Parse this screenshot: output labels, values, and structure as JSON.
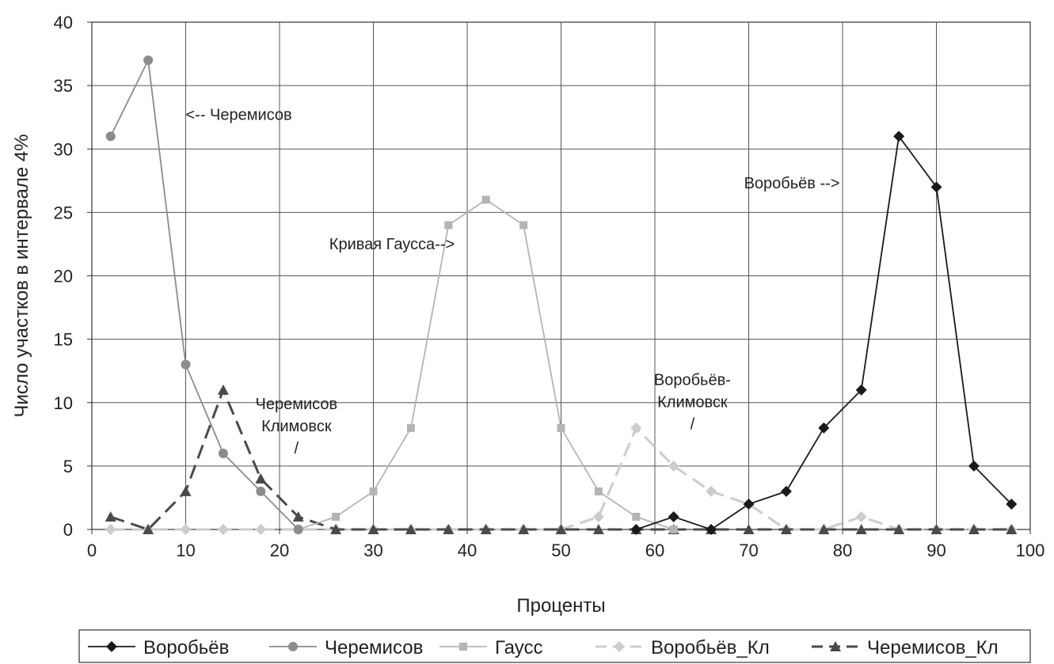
{
  "chart_data": {
    "type": "line",
    "title": "",
    "xlabel": "Проценты",
    "ylabel": "Число участков в интервале 4%",
    "xlim": [
      0,
      100
    ],
    "ylim": [
      0,
      40
    ],
    "xticks": [
      "0",
      "10",
      "20",
      "30",
      "40",
      "50",
      "60",
      "70",
      "80",
      "90",
      "100"
    ],
    "yticks": [
      "0",
      "5",
      "10",
      "15",
      "20",
      "25",
      "30",
      "35",
      "40"
    ],
    "grid": true,
    "legend_position": "bottom",
    "x": [
      2,
      6,
      10,
      14,
      18,
      22,
      26,
      30,
      34,
      38,
      42,
      46,
      50,
      54,
      58,
      62,
      66,
      70,
      74,
      78,
      82,
      86,
      90,
      94,
      98
    ],
    "series": [
      {
        "name": "Воробьёв",
        "color": "#1a1a1a",
        "marker": "diamond",
        "dash": "solid",
        "values": [
          null,
          null,
          null,
          null,
          null,
          null,
          null,
          null,
          null,
          null,
          null,
          null,
          null,
          null,
          0,
          1,
          0,
          2,
          3,
          8,
          11,
          31,
          27,
          5,
          2
        ]
      },
      {
        "name": "Черемисов",
        "color": "#8c8c8c",
        "marker": "circle",
        "dash": "solid",
        "values": [
          31,
          37,
          13,
          6,
          3,
          0,
          null,
          null,
          null,
          null,
          null,
          null,
          null,
          null,
          null,
          null,
          null,
          null,
          null,
          null,
          null,
          null,
          null,
          null,
          null
        ]
      },
      {
        "name": "Гаусс",
        "color": "#b4b4b4",
        "marker": "square",
        "dash": "solid",
        "values": [
          null,
          null,
          null,
          null,
          null,
          0,
          1,
          3,
          8,
          24,
          26,
          24,
          8,
          3,
          1,
          0,
          null,
          null,
          null,
          null,
          null,
          null,
          null,
          null,
          null
        ]
      },
      {
        "name": "Воробьёв_Кл",
        "color": "#cccccc",
        "marker": "diamond",
        "dash": "dashed",
        "values": [
          0,
          0,
          0,
          0,
          0,
          0,
          0,
          0,
          0,
          0,
          0,
          0,
          0,
          1,
          8,
          5,
          3,
          2,
          0,
          0,
          1,
          0,
          0,
          0,
          0
        ]
      },
      {
        "name": "Черемисов_Кл",
        "color": "#4a4a4a",
        "marker": "triangle",
        "dash": "dashed",
        "values": [
          1,
          0,
          3,
          11,
          4,
          1,
          0,
          0,
          0,
          0,
          0,
          0,
          0,
          0,
          0,
          0,
          0,
          0,
          0,
          0,
          0,
          0,
          0,
          0,
          0
        ]
      }
    ],
    "annotations": [
      {
        "id": "cheremisov",
        "lines": [
          "<-- Черемисов"
        ],
        "x": 10,
        "y": 32.3
      },
      {
        "id": "gauss",
        "lines": [
          "Кривая Гаусса-->"
        ],
        "x": 25.3,
        "y": 22.1
      },
      {
        "id": "vorobyov",
        "lines": [
          "Воробьёв -->"
        ],
        "x": 69.5,
        "y": 26.9
      },
      {
        "id": "cheremisov_kl",
        "lines": [
          "Черемисов",
          "Климовск",
          "/"
        ],
        "x": 21.8,
        "y": 9.5
      },
      {
        "id": "vorobyov_kl",
        "lines": [
          "Воробьёв-",
          "Климовск",
          "/"
        ],
        "x": 64,
        "y": 11.4
      }
    ]
  }
}
